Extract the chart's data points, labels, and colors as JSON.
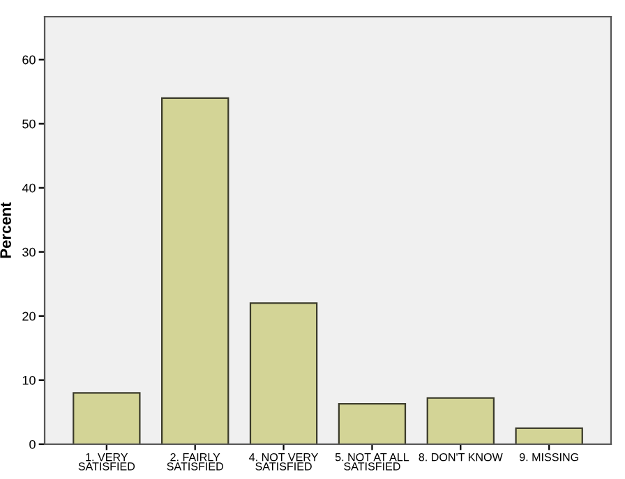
{
  "chart_data": {
    "type": "bar",
    "ylabel": "Percent",
    "categories": [
      "1. VERY\nSATISFIED",
      "2. FAIRLY\nSATISFIED",
      "4. NOT VERY\nSATISFIED",
      "5. NOT AT ALL\nSATISFIED",
      "8. DON'T KNOW",
      "9. MISSING"
    ],
    "values": [
      8.0,
      54.0,
      22.0,
      6.3,
      7.2,
      2.5
    ],
    "color": "#d3d496",
    "ylim": [
      0,
      66.7
    ],
    "yticks": [
      0,
      10,
      20,
      30,
      40,
      50,
      60
    ],
    "grid": false
  }
}
